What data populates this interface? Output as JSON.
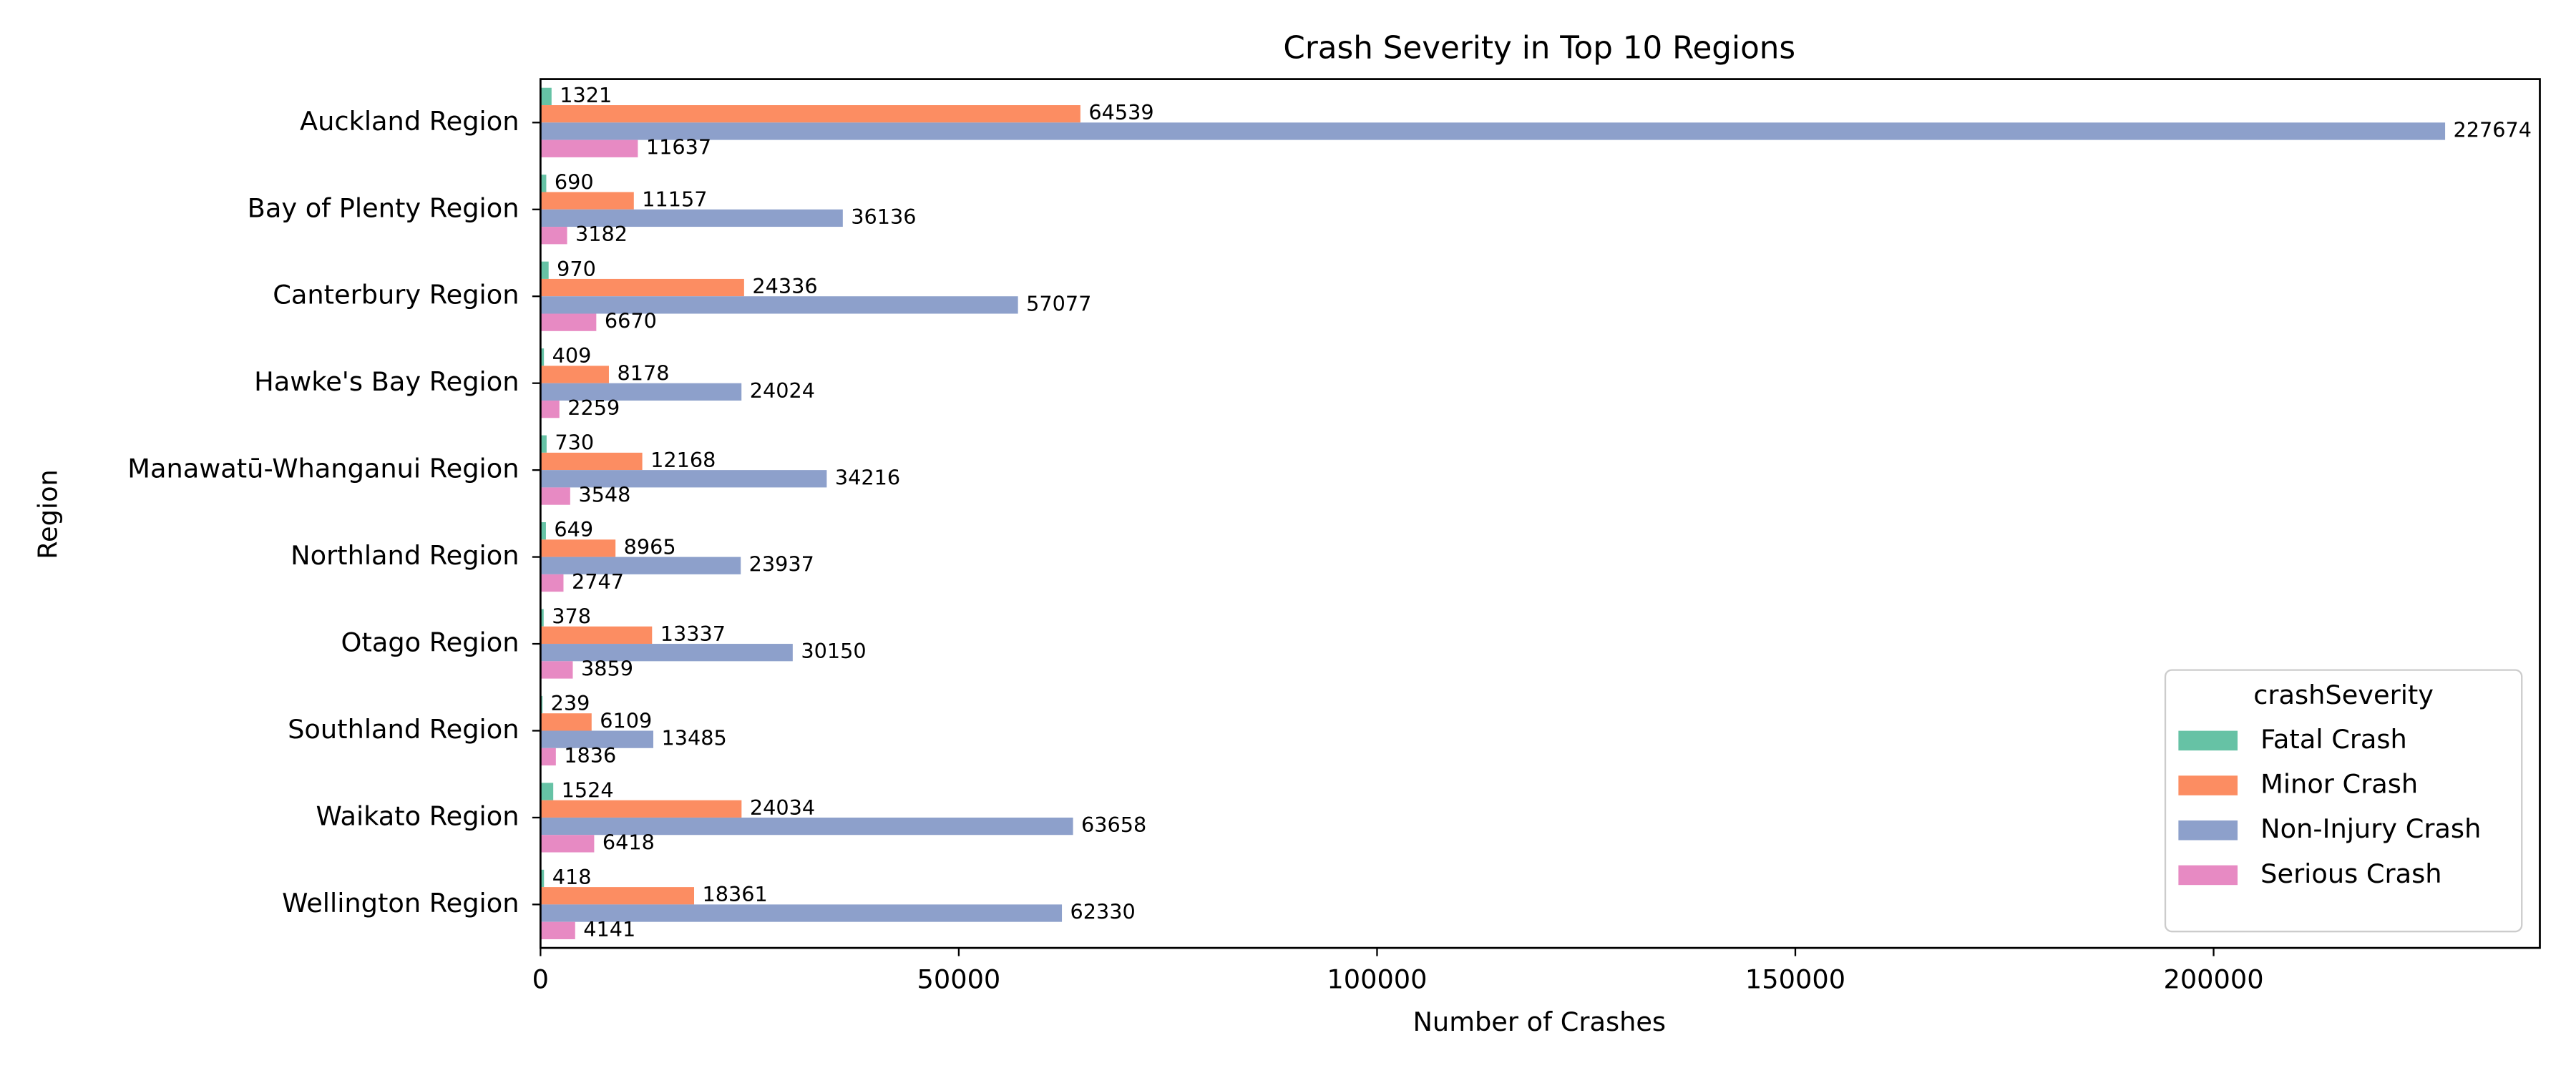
{
  "chart_data": {
    "type": "bar",
    "orientation": "horizontal",
    "title": "Crash Severity in Top 10 Regions",
    "xlabel": "Number of Crashes",
    "ylabel": "Region",
    "categories": [
      "Auckland Region",
      "Bay of Plenty Region",
      "Canterbury Region",
      "Hawke's Bay Region",
      "Manawatū-Whanganui Region",
      "Northland Region",
      "Otago Region",
      "Southland Region",
      "Waikato Region",
      "Wellington Region"
    ],
    "series": [
      {
        "name": "Fatal Crash",
        "color": "#66c2a5",
        "values": [
          1321,
          690,
          970,
          409,
          730,
          649,
          378,
          239,
          1524,
          418
        ]
      },
      {
        "name": "Minor Crash",
        "color": "#fc8d62",
        "values": [
          64539,
          11157,
          24336,
          8178,
          12168,
          8965,
          13337,
          6109,
          24034,
          18361
        ]
      },
      {
        "name": "Non-Injury Crash",
        "color": "#8da0cb",
        "values": [
          227674,
          36136,
          57077,
          24024,
          34216,
          23937,
          30150,
          13485,
          63658,
          62330
        ]
      },
      {
        "name": "Serious Crash",
        "color": "#e78ac3",
        "values": [
          11637,
          3182,
          6670,
          2259,
          3548,
          2747,
          3859,
          1836,
          6418,
          4141
        ]
      }
    ],
    "legend_title": "crashSeverity",
    "legend": "lower right",
    "xlim": [
      0,
      239000
    ],
    "xticks": [
      0,
      50000,
      100000,
      150000,
      200000
    ],
    "grid": false
  }
}
